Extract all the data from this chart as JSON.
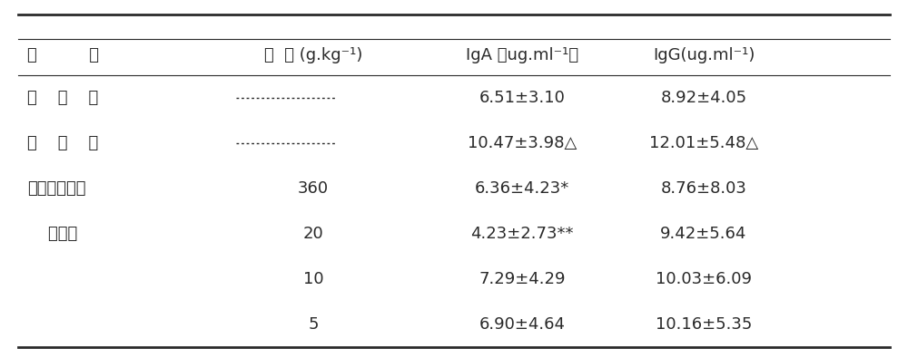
{
  "background_color": "#ffffff",
  "header_col0": "组          别",
  "header_col1": "剂  量 (g.kg⁻¹)",
  "header_col2": "IgA （ug.ml⁻¹）",
  "header_col3": "IgG(ug.ml⁻¹)",
  "rows": [
    {
      "col0": "对    照    组",
      "has_dash": true,
      "col1": "",
      "col2": "6.51±3.10",
      "col3": "8.92±4.05"
    },
    {
      "col0": "模    型    组",
      "has_dash": true,
      "col1": "",
      "col2": "10.47±3.98△",
      "col3": "12.01±5.48△"
    },
    {
      "col0": "柳氪磺胺吠啊",
      "has_dash": false,
      "col1": "360",
      "col2": "6.36±4.23*",
      "col3": "8.76±8.03"
    },
    {
      "col0": "    灌肠剂",
      "has_dash": false,
      "col1": "20",
      "col2": "4.23±2.73**",
      "col3": "9.42±5.64"
    },
    {
      "col0": "",
      "has_dash": false,
      "col1": "10",
      "col2": "7.29±4.29",
      "col3": "10.03±6.09"
    },
    {
      "col0": "",
      "has_dash": false,
      "col1": "5",
      "col2": "6.90±4.64",
      "col3": "10.16±5.35"
    }
  ],
  "text_color": "#2a2a2a",
  "line_color": "#2a2a2a",
  "font_size": 13,
  "header_font_size": 13
}
